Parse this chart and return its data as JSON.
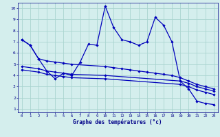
{
  "xlabel": "Graphe des températures (°c)",
  "background_color": "#d4eeed",
  "grid_color": "#aad4d0",
  "line_color": "#0000bb",
  "xlim": [
    -0.5,
    23.5
  ],
  "ylim": [
    0.7,
    10.5
  ],
  "yticks": [
    1,
    2,
    3,
    4,
    5,
    6,
    7,
    8,
    9,
    10
  ],
  "xticks": [
    0,
    1,
    2,
    3,
    4,
    5,
    6,
    7,
    8,
    9,
    10,
    11,
    12,
    13,
    14,
    15,
    16,
    17,
    18,
    19,
    20,
    21,
    22,
    23
  ],
  "series1_x": [
    0,
    1,
    2,
    3,
    4,
    5,
    6,
    7,
    8,
    9,
    10,
    11,
    12,
    13,
    14,
    15,
    16,
    17,
    18,
    19,
    20,
    21,
    22,
    23
  ],
  "series1_y": [
    7.2,
    6.7,
    5.5,
    4.4,
    3.7,
    4.2,
    4.0,
    5.2,
    6.8,
    6.7,
    10.2,
    8.3,
    7.2,
    7.0,
    6.7,
    7.0,
    9.2,
    8.5,
    7.0,
    3.5,
    2.8,
    1.7,
    1.5,
    1.4
  ],
  "series2_x": [
    0,
    1,
    2,
    3,
    4,
    5,
    6,
    10,
    11,
    12,
    13,
    14,
    15,
    16,
    17,
    18,
    19,
    20,
    21,
    22,
    23
  ],
  "series2_y": [
    7.2,
    6.7,
    5.5,
    5.3,
    5.2,
    5.1,
    5.0,
    4.8,
    4.7,
    4.6,
    4.5,
    4.4,
    4.3,
    4.2,
    4.1,
    4.0,
    3.8,
    3.5,
    3.2,
    3.0,
    2.8
  ],
  "series3_x": [
    0,
    2,
    3,
    4,
    5,
    6,
    10,
    19,
    20,
    21,
    22,
    23
  ],
  "series3_y": [
    4.8,
    4.6,
    4.4,
    4.3,
    4.2,
    4.1,
    4.0,
    3.5,
    3.3,
    3.0,
    2.8,
    2.6
  ],
  "series4_x": [
    0,
    2,
    3,
    4,
    5,
    6,
    10,
    19,
    20,
    21,
    22,
    23
  ],
  "series4_y": [
    4.5,
    4.3,
    4.1,
    4.0,
    3.9,
    3.8,
    3.7,
    3.2,
    3.0,
    2.7,
    2.5,
    2.3
  ]
}
